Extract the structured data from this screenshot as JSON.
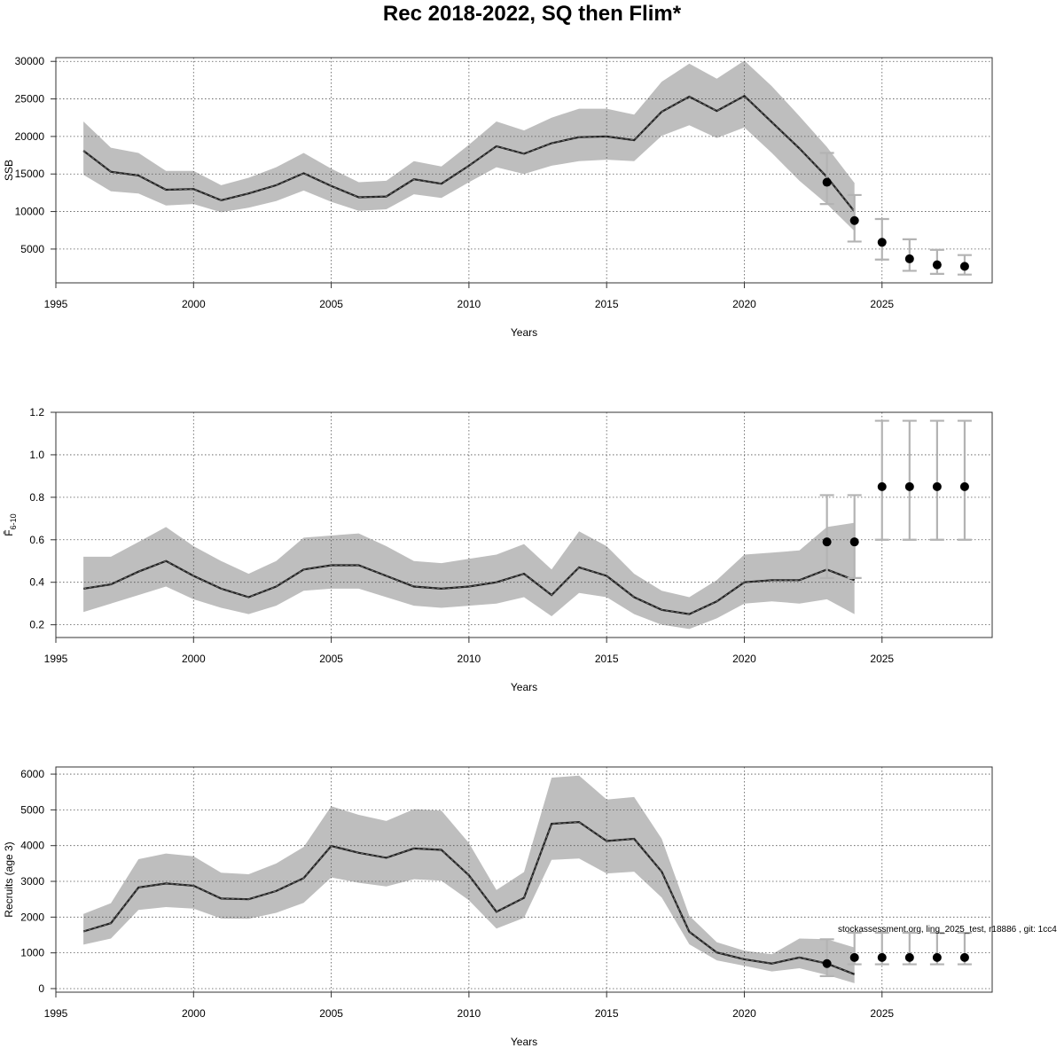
{
  "page": {
    "title": "Rec 2018-2022, SQ then Flim*",
    "footnote": "stockassessment.org, ling_2025_test, r18886 , git: 1cc4"
  },
  "colors": {
    "band": "#bebebe",
    "errorbar": "#b3b3b3",
    "line": "#222222",
    "point": "#000000",
    "grid": "#555555"
  },
  "chart_data": [
    {
      "type": "line",
      "title": "",
      "xlabel": "Years",
      "ylabel": "SSB",
      "xlim": [
        1995,
        2029
      ],
      "ylim": [
        500,
        30500
      ],
      "xticks": [
        1995,
        2000,
        2005,
        2010,
        2015,
        2020,
        2025
      ],
      "xtick_labels": [
        "1995",
        "2000",
        "2005",
        "2010",
        "2015",
        "2020",
        "2025"
      ],
      "yticks": [
        5000,
        10000,
        15000,
        20000,
        25000,
        30000
      ],
      "ytick_labels": [
        "5000",
        "10000",
        "15000",
        "20000",
        "25000",
        "30000"
      ],
      "grid": true,
      "x": [
        1996,
        1997,
        1998,
        1999,
        2000,
        2001,
        2002,
        2003,
        2004,
        2005,
        2006,
        2007,
        2008,
        2009,
        2010,
        2011,
        2012,
        2013,
        2014,
        2015,
        2016,
        2017,
        2018,
        2019,
        2020,
        2021,
        2022,
        2023,
        2024
      ],
      "series": [
        {
          "values": [
            18100,
            15300,
            14800,
            12900,
            13000,
            11500,
            12400,
            13500,
            15100,
            13400,
            11900,
            12000,
            14300,
            13700,
            16100,
            18700,
            17700,
            19100,
            19900,
            20000,
            19500,
            23300,
            25300,
            23400,
            25400,
            21900,
            18400,
            14600,
            10000
          ]
        }
      ],
      "lower": [
        14900,
        12700,
        12400,
        10800,
        11000,
        9900,
        10500,
        11400,
        12800,
        11300,
        10100,
        10300,
        12300,
        11800,
        13900,
        15900,
        15000,
        16100,
        16700,
        16900,
        16700,
        20100,
        21500,
        19800,
        21200,
        17800,
        14100,
        11000,
        7400
      ],
      "upper": [
        22000,
        18500,
        17800,
        15400,
        15400,
        13500,
        14500,
        15900,
        17800,
        15700,
        13900,
        14100,
        16700,
        16000,
        18900,
        22000,
        20800,
        22500,
        23700,
        23700,
        22900,
        27300,
        29700,
        27700,
        30100,
        26700,
        22700,
        18600,
        13800
      ],
      "projection": {
        "x": [
          2023,
          2024,
          2025,
          2026,
          2027,
          2028
        ],
        "values": [
          13900,
          8800,
          5900,
          3700,
          2900,
          2700
        ],
        "lower": [
          11000,
          6000,
          3600,
          2100,
          1700,
          1600
        ],
        "upper": [
          17800,
          12200,
          9000,
          6300,
          4900,
          4200
        ]
      }
    },
    {
      "type": "line",
      "title": "",
      "xlabel": "Years",
      "ylabel": "F̄6-10",
      "ylabel_main": "F̄",
      "ylabel_sub": "6-10",
      "xlim": [
        1995,
        2029
      ],
      "ylim": [
        0.14,
        1.2
      ],
      "xticks": [
        1995,
        2000,
        2005,
        2010,
        2015,
        2020,
        2025
      ],
      "xtick_labels": [
        "1995",
        "2000",
        "2005",
        "2010",
        "2015",
        "2020",
        "2025"
      ],
      "yticks": [
        0.2,
        0.4,
        0.6,
        0.8,
        1.0,
        1.2
      ],
      "ytick_labels": [
        "0.2",
        "0.4",
        "0.6",
        "0.8",
        "1.0",
        "1.2"
      ],
      "grid": true,
      "x": [
        1996,
        1997,
        1998,
        1999,
        2000,
        2001,
        2002,
        2003,
        2004,
        2005,
        2006,
        2007,
        2008,
        2009,
        2010,
        2011,
        2012,
        2013,
        2014,
        2015,
        2016,
        2017,
        2018,
        2019,
        2020,
        2021,
        2022,
        2023,
        2024
      ],
      "series": [
        {
          "values": [
            0.37,
            0.39,
            0.45,
            0.5,
            0.43,
            0.37,
            0.33,
            0.38,
            0.46,
            0.48,
            0.48,
            0.43,
            0.38,
            0.37,
            0.38,
            0.4,
            0.44,
            0.34,
            0.47,
            0.43,
            0.33,
            0.27,
            0.25,
            0.31,
            0.4,
            0.41,
            0.41,
            0.46,
            0.41
          ]
        }
      ],
      "lower": [
        0.26,
        0.3,
        0.34,
        0.38,
        0.32,
        0.28,
        0.25,
        0.29,
        0.36,
        0.37,
        0.37,
        0.33,
        0.29,
        0.28,
        0.29,
        0.3,
        0.33,
        0.24,
        0.35,
        0.33,
        0.25,
        0.2,
        0.18,
        0.23,
        0.3,
        0.31,
        0.3,
        0.32,
        0.25
      ],
      "upper": [
        0.52,
        0.52,
        0.59,
        0.66,
        0.57,
        0.5,
        0.44,
        0.5,
        0.61,
        0.62,
        0.63,
        0.57,
        0.5,
        0.49,
        0.51,
        0.53,
        0.58,
        0.46,
        0.64,
        0.57,
        0.44,
        0.36,
        0.33,
        0.41,
        0.53,
        0.54,
        0.55,
        0.66,
        0.68
      ],
      "projection": {
        "x": [
          2023,
          2024,
          2025,
          2026,
          2027,
          2028
        ],
        "values": [
          0.59,
          0.59,
          0.85,
          0.85,
          0.85,
          0.85
        ],
        "lower": [
          0.42,
          0.42,
          0.6,
          0.6,
          0.6,
          0.6
        ],
        "upper": [
          0.81,
          0.81,
          1.16,
          1.16,
          1.16,
          1.16
        ]
      }
    },
    {
      "type": "line",
      "title": "",
      "xlabel": "Years",
      "ylabel": "Recruits (age 3)",
      "xlim": [
        1995,
        2029
      ],
      "ylim": [
        -100,
        6200
      ],
      "xticks": [
        1995,
        2000,
        2005,
        2010,
        2015,
        2020,
        2025
      ],
      "xtick_labels": [
        "1995",
        "2000",
        "2005",
        "2010",
        "2015",
        "2020",
        "2025"
      ],
      "yticks": [
        0,
        1000,
        2000,
        3000,
        4000,
        5000,
        6000
      ],
      "ytick_labels": [
        "0",
        "1000",
        "2000",
        "3000",
        "4000",
        "5000",
        "6000"
      ],
      "grid": true,
      "x": [
        1996,
        1997,
        1998,
        1999,
        2000,
        2001,
        2002,
        2003,
        2004,
        2005,
        2006,
        2007,
        2008,
        2009,
        2010,
        2011,
        2012,
        2013,
        2014,
        2015,
        2016,
        2017,
        2018,
        2019,
        2020,
        2021,
        2022,
        2023,
        2024
      ],
      "series": [
        {
          "values": [
            1600,
            1830,
            2830,
            2940,
            2880,
            2520,
            2500,
            2730,
            3090,
            3990,
            3800,
            3660,
            3920,
            3880,
            3170,
            2150,
            2540,
            4610,
            4660,
            4130,
            4190,
            3270,
            1590,
            1010,
            820,
            700,
            870,
            700,
            400
          ]
        }
      ],
      "lower": [
        1230,
        1400,
        2200,
        2280,
        2240,
        1960,
        1950,
        2120,
        2400,
        3110,
        2960,
        2860,
        3060,
        3020,
        2470,
        1680,
        1980,
        3600,
        3640,
        3220,
        3270,
        2550,
        1240,
        790,
        640,
        480,
        570,
        380,
        150
      ],
      "upper": [
        2090,
        2390,
        3620,
        3780,
        3700,
        3240,
        3200,
        3500,
        3960,
        5100,
        4860,
        4690,
        5020,
        4980,
        4070,
        2760,
        3260,
        5900,
        5960,
        5290,
        5360,
        4190,
        2040,
        1300,
        1060,
        960,
        1400,
        1380,
        1150
      ],
      "projection": {
        "x": [
          2023,
          2024,
          2025,
          2026,
          2027,
          2028
        ],
        "values": [
          700,
          870,
          870,
          870,
          870,
          870
        ],
        "lower": [
          350,
          680,
          680,
          680,
          680,
          680
        ],
        "upper": [
          1380,
          1560,
          1560,
          1560,
          1560,
          1560
        ]
      }
    }
  ]
}
